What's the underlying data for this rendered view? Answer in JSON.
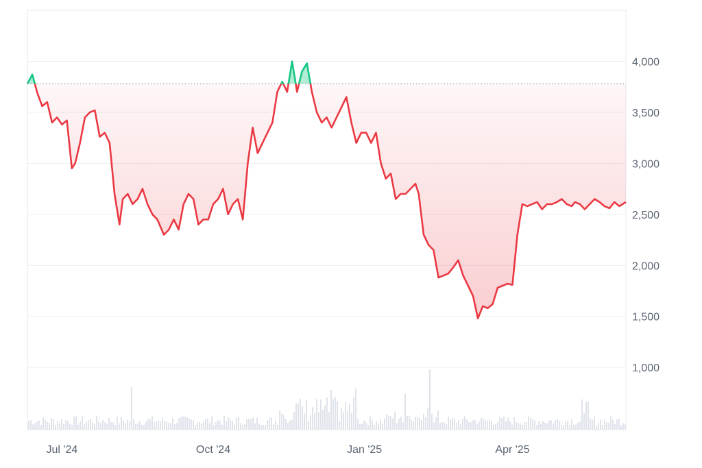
{
  "chart_data": {
    "type": "area",
    "title": "",
    "xlabel": "",
    "ylabel": "",
    "x_tick_labels": [
      "Jul '24",
      "Oct '24",
      "Jan '25",
      "Apr '25"
    ],
    "y_tick_labels": [
      "1,000",
      "1,500",
      "2,000",
      "2,500",
      "3,000",
      "3,500",
      "4,000"
    ],
    "y_ticks": [
      1000,
      1500,
      2000,
      2500,
      3000,
      3500,
      4000
    ],
    "x_ticks": [
      "2024-07-01",
      "2024-10-01",
      "2025-01-01",
      "2025-04-01"
    ],
    "xlim": [
      "2024-06-10",
      "2025-06-09"
    ],
    "ylim": [
      390,
      4500
    ],
    "baseline": 3780,
    "above_color": "#16c784",
    "below_color": "#ea3943",
    "volume_color": "#dfe3ea",
    "series": [
      {
        "x": [
          "2024-06-10",
          "2024-06-13",
          "2024-06-16",
          "2024-06-19",
          "2024-06-22",
          "2024-06-25",
          "2024-06-28",
          "2024-07-01",
          "2024-07-04",
          "2024-07-07",
          "2024-07-09",
          "2024-07-12",
          "2024-07-15",
          "2024-07-18",
          "2024-07-21",
          "2024-07-24",
          "2024-07-27",
          "2024-07-30",
          "2024-08-02",
          "2024-08-05",
          "2024-08-07",
          "2024-08-10",
          "2024-08-13",
          "2024-08-16",
          "2024-08-19",
          "2024-08-22",
          "2024-08-25",
          "2024-08-28",
          "2024-09-01",
          "2024-09-04",
          "2024-09-07",
          "2024-09-10",
          "2024-09-13",
          "2024-09-16",
          "2024-09-19",
          "2024-09-22",
          "2024-09-25",
          "2024-09-28",
          "2024-10-01",
          "2024-10-04",
          "2024-10-07",
          "2024-10-10",
          "2024-10-13",
          "2024-10-16",
          "2024-10-19",
          "2024-10-22",
          "2024-10-25",
          "2024-10-28",
          "2024-10-31",
          "2024-11-03",
          "2024-11-06",
          "2024-11-09",
          "2024-11-12",
          "2024-11-15",
          "2024-11-18",
          "2024-11-21",
          "2024-11-24",
          "2024-11-27",
          "2024-11-30",
          "2024-12-03",
          "2024-12-06",
          "2024-12-09",
          "2024-12-12",
          "2024-12-15",
          "2024-12-18",
          "2024-12-21",
          "2024-12-24",
          "2024-12-27",
          "2024-12-30",
          "2025-01-02",
          "2025-01-05",
          "2025-01-08",
          "2025-01-11",
          "2025-01-14",
          "2025-01-17",
          "2025-01-20",
          "2025-01-23",
          "2025-01-26",
          "2025-01-29",
          "2025-02-01",
          "2025-02-03",
          "2025-02-06",
          "2025-02-09",
          "2025-02-12",
          "2025-02-15",
          "2025-02-18",
          "2025-02-21",
          "2025-02-24",
          "2025-02-27",
          "2025-03-02",
          "2025-03-05",
          "2025-03-08",
          "2025-03-11",
          "2025-03-14",
          "2025-03-17",
          "2025-03-20",
          "2025-03-23",
          "2025-03-26",
          "2025-03-29",
          "2025-04-01",
          "2025-04-04",
          "2025-04-07",
          "2025-04-10",
          "2025-04-13",
          "2025-04-16",
          "2025-04-19",
          "2025-04-22",
          "2025-04-25",
          "2025-04-28",
          "2025-05-01",
          "2025-05-04",
          "2025-05-07",
          "2025-05-09",
          "2025-05-12",
          "2025-05-15",
          "2025-05-18",
          "2025-05-21",
          "2025-05-24",
          "2025-05-27",
          "2025-05-30",
          "2025-06-02",
          "2025-06-05",
          "2025-06-09"
        ],
        "values": [
          3780,
          3870,
          3690,
          3560,
          3600,
          3400,
          3450,
          3380,
          3420,
          2950,
          3000,
          3200,
          3450,
          3500,
          3520,
          3260,
          3300,
          3200,
          2700,
          2400,
          2650,
          2700,
          2600,
          2650,
          2750,
          2600,
          2500,
          2450,
          2300,
          2350,
          2450,
          2350,
          2600,
          2700,
          2650,
          2400,
          2450,
          2450,
          2600,
          2650,
          2750,
          2500,
          2600,
          2650,
          2450,
          3000,
          3350,
          3100,
          3200,
          3300,
          3400,
          3700,
          3800,
          3700,
          4000,
          3700,
          3900,
          3980,
          3700,
          3500,
          3400,
          3450,
          3350,
          3450,
          3550,
          3650,
          3400,
          3200,
          3300,
          3300,
          3200,
          3300,
          3000,
          2850,
          2900,
          2650,
          2700,
          2700,
          2750,
          2800,
          2700,
          2300,
          2200,
          2150,
          1880,
          1900,
          1920,
          1980,
          2050,
          1900,
          1800,
          1700,
          1480,
          1600,
          1580,
          1620,
          1780,
          1800,
          1820,
          1810,
          2300,
          2600,
          2580,
          2600,
          2620,
          2550,
          2600,
          2600,
          2620,
          2650,
          2600,
          2580,
          2620,
          2600,
          2550,
          2600,
          2650,
          2620,
          2580,
          2560,
          2620,
          2580,
          2620
        ]
      }
    ]
  }
}
